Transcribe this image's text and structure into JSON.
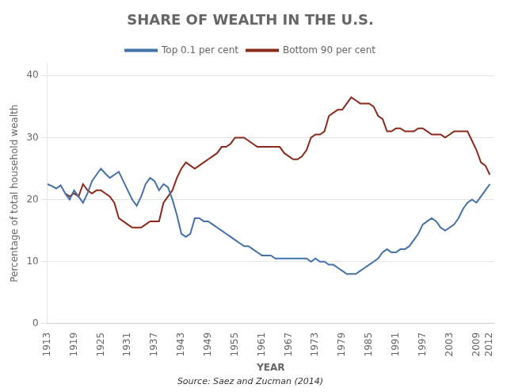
{
  "chart_data": {
    "type": "line",
    "title": "SHARE OF WEALTH IN THE U.S.",
    "x_label": "YEAR",
    "y_label": "Percentage of total household wealth",
    "source": "Source: Saez and Zucman (2014)",
    "legend": "top",
    "grid": "y",
    "xlim": [
      1913,
      2013
    ],
    "xticks": [
      1913,
      1919,
      1925,
      1931,
      1937,
      1943,
      1949,
      1955,
      1961,
      1967,
      1973,
      1979,
      1985,
      1991,
      1997,
      2003,
      2009,
      2012
    ],
    "ylim": [
      0,
      42
    ],
    "yticks": [
      0,
      10,
      20,
      30,
      40
    ],
    "series": [
      {
        "name": "Top 0.1 per cent",
        "color": "#4472a8",
        "x": [
          1913,
          1914,
          1915,
          1916,
          1917,
          1918,
          1919,
          1920,
          1921,
          1922,
          1923,
          1924,
          1925,
          1926,
          1927,
          1928,
          1929,
          1930,
          1931,
          1932,
          1933,
          1934,
          1935,
          1936,
          1937,
          1938,
          1939,
          1940,
          1941,
          1942,
          1943,
          1944,
          1945,
          1946,
          1947,
          1948,
          1949,
          1950,
          1951,
          1952,
          1953,
          1954,
          1955,
          1956,
          1957,
          1958,
          1959,
          1960,
          1961,
          1962,
          1963,
          1964,
          1965,
          1966,
          1967,
          1968,
          1969,
          1970,
          1971,
          1972,
          1973,
          1974,
          1975,
          1976,
          1977,
          1978,
          1979,
          1980,
          1981,
          1982,
          1983,
          1984,
          1985,
          1986,
          1987,
          1988,
          1989,
          1990,
          1991,
          1992,
          1993,
          1994,
          1995,
          1996,
          1997,
          1998,
          1999,
          2000,
          2001,
          2002,
          2003,
          2004,
          2005,
          2006,
          2007,
          2008,
          2009,
          2010,
          2011,
          2012
        ],
        "values": [
          22.5,
          22.2,
          21.8,
          22.3,
          21.0,
          20.0,
          21.5,
          20.5,
          19.5,
          21.0,
          23.0,
          24.0,
          25.0,
          24.2,
          23.5,
          24.0,
          24.5,
          23.0,
          21.5,
          20.0,
          19.0,
          20.5,
          22.5,
          23.5,
          23.0,
          21.5,
          22.5,
          22.0,
          20.0,
          17.5,
          14.5,
          14.0,
          14.5,
          17.0,
          17.0,
          16.5,
          16.5,
          16.0,
          15.5,
          15.0,
          14.5,
          14.0,
          13.5,
          13.0,
          12.5,
          12.5,
          12.0,
          11.5,
          11.0,
          11.0,
          11.0,
          10.5,
          10.5,
          10.5,
          10.5,
          10.5,
          10.5,
          10.5,
          10.5,
          10.0,
          10.5,
          10.0,
          10.0,
          9.5,
          9.5,
          9.0,
          8.5,
          8.0,
          8.0,
          8.0,
          8.5,
          9.0,
          9.5,
          10.0,
          10.5,
          11.5,
          12.0,
          11.5,
          11.5,
          12.0,
          12.0,
          12.5,
          13.5,
          14.5,
          16.0,
          16.5,
          17.0,
          16.5,
          15.5,
          15.0,
          15.5,
          16.0,
          17.0,
          18.5,
          19.5,
          20.0,
          19.5,
          20.5,
          21.5,
          22.5
        ]
      },
      {
        "name": "Bottom 90 per cent",
        "color": "#8b2a1a",
        "x": [
          1917,
          1918,
          1919,
          1920,
          1921,
          1922,
          1923,
          1924,
          1925,
          1926,
          1927,
          1928,
          1929,
          1930,
          1931,
          1932,
          1933,
          1934,
          1935,
          1936,
          1937,
          1938,
          1939,
          1940,
          1941,
          1942,
          1943,
          1944,
          1945,
          1946,
          1947,
          1948,
          1949,
          1950,
          1951,
          1952,
          1953,
          1954,
          1955,
          1956,
          1957,
          1958,
          1959,
          1960,
          1961,
          1962,
          1963,
          1964,
          1965,
          1966,
          1967,
          1968,
          1969,
          1970,
          1971,
          1972,
          1973,
          1974,
          1975,
          1976,
          1977,
          1978,
          1979,
          1980,
          1981,
          1982,
          1983,
          1984,
          1985,
          1986,
          1987,
          1988,
          1989,
          1990,
          1991,
          1992,
          1993,
          1994,
          1995,
          1996,
          1997,
          1998,
          1999,
          2000,
          2001,
          2002,
          2003,
          2004,
          2005,
          2006,
          2007,
          2008,
          2009,
          2010,
          2011,
          2012
        ],
        "values": [
          21.0,
          20.5,
          21.0,
          20.5,
          22.5,
          21.5,
          21.0,
          21.5,
          21.5,
          21.0,
          20.5,
          19.5,
          17.0,
          16.5,
          16.0,
          15.5,
          15.5,
          15.5,
          16.0,
          16.5,
          16.5,
          16.5,
          19.5,
          20.5,
          21.5,
          23.5,
          25.0,
          26.0,
          25.5,
          25.0,
          25.5,
          26.0,
          26.5,
          27.0,
          27.5,
          28.5,
          28.5,
          29.0,
          30.0,
          30.0,
          30.0,
          29.5,
          29.0,
          28.5,
          28.5,
          28.5,
          28.5,
          28.5,
          28.5,
          27.5,
          27.0,
          26.5,
          26.5,
          27.0,
          28.0,
          30.0,
          30.5,
          30.5,
          31.0,
          33.5,
          34.0,
          34.5,
          34.5,
          35.5,
          36.5,
          36.0,
          35.5,
          35.5,
          35.5,
          35.0,
          33.5,
          33.0,
          31.0,
          31.0,
          31.5,
          31.5,
          31.0,
          31.0,
          31.0,
          31.5,
          31.5,
          31.0,
          30.5,
          30.5,
          30.5,
          30.0,
          30.5,
          31.0,
          31.0,
          31.0,
          31.0,
          29.5,
          28.0,
          26.0,
          25.5,
          24.0
        ]
      }
    ]
  }
}
